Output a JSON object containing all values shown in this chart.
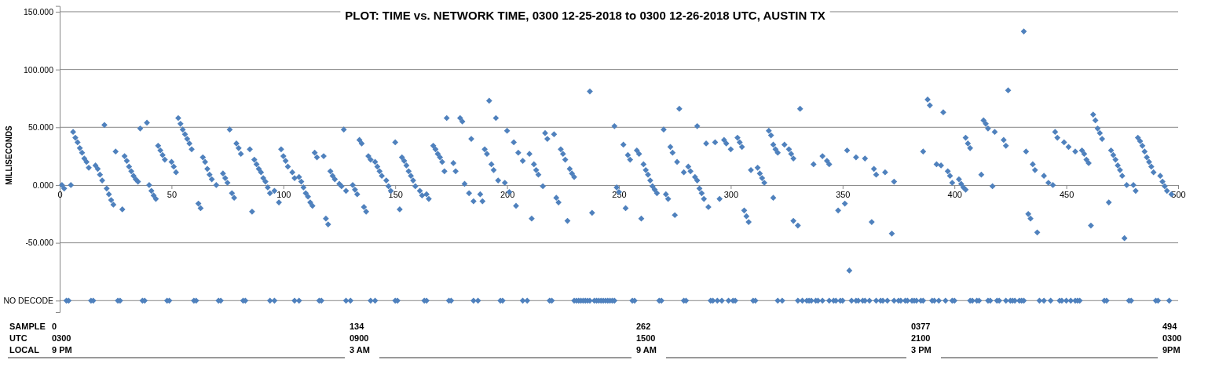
{
  "chart_data": {
    "type": "scatter",
    "title": "PLOT: TIME vs. NETWORK TIME, 0300 12-25-2018 to 0300 12-26-2018  UTC, AUSTIN TX",
    "ylabel": "MILLISECONDS",
    "xlim": [
      0,
      500
    ],
    "xticks": [
      0,
      50,
      100,
      150,
      200,
      250,
      300,
      350,
      400,
      450,
      500
    ],
    "ylim": [
      -110,
      155
    ],
    "yticks": [
      {
        "value": -100,
        "label": "NO DECODE"
      },
      {
        "value": -50,
        "label": "-50.000"
      },
      {
        "value": 0,
        "label": "0.000"
      },
      {
        "value": 50,
        "label": "50.000"
      },
      {
        "value": 100,
        "label": "100.000"
      },
      {
        "value": 150,
        "label": "150.000"
      }
    ],
    "grid": "y",
    "marker": "diamond",
    "series": [
      {
        "color": "#4f81bd",
        "x": [
          1,
          2,
          5,
          6,
          7,
          8,
          9,
          10,
          11,
          12,
          13,
          16,
          17,
          18,
          19,
          20,
          21,
          22,
          23,
          24,
          25,
          28,
          29,
          30,
          31,
          32,
          33,
          34,
          35,
          36,
          39,
          40,
          41,
          42,
          43,
          44,
          45,
          46,
          47,
          50,
          51,
          52,
          53,
          54,
          55,
          56,
          57,
          58,
          59,
          62,
          63,
          64,
          65,
          66,
          67,
          68,
          70,
          73,
          74,
          75,
          76,
          77,
          78,
          79,
          80,
          81,
          85,
          86,
          87,
          88,
          89,
          90,
          91,
          92,
          93,
          94,
          96,
          98,
          99,
          100,
          101,
          102,
          104,
          105,
          107,
          108,
          109,
          110,
          111,
          112,
          113,
          114,
          115,
          118,
          119,
          120,
          121,
          122,
          123,
          125,
          126,
          127,
          128,
          131,
          132,
          133,
          134,
          135,
          136,
          137,
          138,
          139,
          141,
          142,
          143,
          144,
          146,
          147,
          148,
          150,
          152,
          153,
          154,
          155,
          156,
          157,
          158,
          159,
          161,
          162,
          164,
          165,
          167,
          168,
          169,
          170,
          171,
          172,
          173,
          176,
          177,
          179,
          180,
          181,
          183,
          184,
          185,
          188,
          189,
          190,
          191,
          192,
          193,
          194,
          195,
          196,
          199,
          200,
          201,
          203,
          204,
          205,
          207,
          210,
          211,
          212,
          213,
          214,
          216,
          217,
          218,
          221,
          222,
          223,
          224,
          225,
          226,
          227,
          228,
          229,
          230,
          237,
          238,
          248,
          249,
          250,
          252,
          253,
          254,
          255,
          258,
          259,
          260,
          261,
          262,
          263,
          264,
          265,
          266,
          267,
          270,
          271,
          272,
          273,
          274,
          275,
          276,
          277,
          279,
          281,
          282,
          284,
          285,
          285,
          286,
          287,
          288,
          289,
          290,
          293,
          295,
          297,
          298,
          300,
          303,
          304,
          305,
          306,
          307,
          308,
          309,
          312,
          313,
          314,
          315,
          317,
          318,
          319,
          319,
          320,
          321,
          324,
          326,
          327,
          328,
          328,
          330,
          331,
          337,
          341,
          343,
          344,
          348,
          351,
          352,
          353,
          356,
          360,
          363,
          364,
          365,
          369,
          372,
          373,
          386,
          388,
          389,
          392,
          394,
          395,
          397,
          398,
          399,
          402,
          403,
          404,
          405,
          405,
          406,
          407,
          412,
          413,
          414,
          415,
          417,
          418,
          422,
          423,
          424,
          431,
          432,
          433,
          434,
          435,
          436,
          437,
          440,
          442,
          444,
          445,
          446,
          449,
          451,
          454,
          457,
          458,
          459,
          460,
          461,
          462,
          463,
          464,
          465,
          466,
          469,
          470,
          471,
          472,
          473,
          474,
          475,
          476,
          477,
          480,
          481,
          482,
          483,
          484,
          485,
          486,
          487,
          488,
          489,
          492,
          493,
          494,
          495,
          497
        ],
        "values": [
          0,
          -3,
          0,
          46,
          41,
          37,
          32,
          28,
          23,
          20,
          15,
          17,
          14,
          9,
          4,
          52,
          -3,
          -8,
          -13,
          -17,
          29,
          -21,
          25,
          21,
          16,
          12,
          8,
          5,
          3,
          49,
          54,
          0,
          -5,
          -9,
          -12,
          34,
          30,
          26,
          22,
          20,
          16,
          11,
          58,
          53,
          48,
          44,
          40,
          36,
          31,
          -16,
          -20,
          24,
          20,
          14,
          9,
          5,
          0,
          10,
          6,
          2,
          48,
          -7,
          -11,
          36,
          32,
          27,
          31,
          -23,
          22,
          18,
          14,
          11,
          6,
          3,
          -2,
          -7,
          -5,
          -15,
          31,
          25,
          21,
          16,
          11,
          6,
          7,
          3,
          -2,
          -7,
          -10,
          -15,
          -18,
          28,
          24,
          25,
          -29,
          -34,
          12,
          8,
          5,
          1,
          -1,
          48,
          -5,
          0,
          -4,
          -8,
          39,
          36,
          -19,
          -23,
          25,
          22,
          20,
          16,
          12,
          8,
          4,
          -1,
          -5,
          37,
          -21,
          24,
          21,
          17,
          12,
          8,
          4,
          -1,
          -5,
          -9,
          -8,
          -12,
          34,
          31,
          27,
          24,
          20,
          12,
          58,
          19,
          12,
          58,
          55,
          1,
          -7,
          40,
          -14,
          -8,
          -14,
          31,
          27,
          73,
          18,
          13,
          58,
          4,
          2,
          47,
          -6,
          37,
          -18,
          28,
          21,
          27,
          -29,
          18,
          13,
          9,
          -1,
          45,
          40,
          44,
          -11,
          -15,
          31,
          27,
          22,
          -31,
          14,
          10,
          7,
          81,
          -24,
          51,
          -2,
          -6,
          35,
          -20,
          26,
          22,
          30,
          27,
          -29,
          18,
          13,
          9,
          4,
          -1,
          -4,
          -7,
          48,
          -8,
          -12,
          33,
          28,
          -26,
          20,
          66,
          11,
          16,
          12,
          7,
          51,
          4,
          -3,
          -7,
          -12,
          36,
          -19,
          37,
          -12,
          39,
          36,
          31,
          41,
          37,
          33,
          -22,
          -27,
          -32,
          13,
          15,
          10,
          6,
          2,
          47,
          43,
          35,
          -11,
          31,
          28,
          35,
          31,
          27,
          23,
          -31,
          -35,
          66,
          18,
          25,
          21,
          18,
          -22,
          -16,
          30,
          -74,
          24,
          23,
          -32,
          14,
          9,
          11,
          -42,
          3,
          29,
          74,
          69,
          18,
          17,
          63,
          12,
          8,
          2,
          5,
          1,
          -2,
          -4,
          41,
          36,
          32,
          9,
          56,
          53,
          49,
          -1,
          46,
          39,
          34,
          82,
          133,
          29,
          -25,
          -29,
          18,
          13,
          -41,
          8,
          2,
          0,
          46,
          41,
          37,
          33,
          29,
          30,
          27,
          22,
          19,
          -35,
          61,
          56,
          49,
          45,
          40,
          -15,
          30,
          26,
          22,
          17,
          13,
          8,
          -46,
          0,
          0,
          -5,
          41,
          38,
          34,
          29,
          24,
          20,
          16,
          11,
          8,
          3,
          -1,
          -5,
          -8
        ]
      },
      {
        "color": "#4f81bd",
        "x": [
          3,
          4,
          14,
          15,
          26,
          27,
          37,
          38,
          48,
          49,
          60,
          61,
          71,
          72,
          82,
          83,
          94,
          96,
          105,
          107,
          116,
          117,
          128,
          130,
          139,
          141,
          150,
          151,
          163,
          164,
          174,
          175,
          185,
          187,
          197,
          198,
          207,
          209,
          219,
          220,
          230,
          231,
          232,
          233,
          234,
          235,
          236,
          237,
          239,
          240,
          241,
          242,
          243,
          244,
          245,
          246,
          247,
          248,
          256,
          257,
          268,
          269,
          279,
          280,
          291,
          292,
          294,
          296,
          299,
          301,
          302,
          310,
          311,
          321,
          323,
          330,
          332,
          334,
          335,
          336,
          338,
          339,
          341,
          344,
          346,
          347,
          349,
          350,
          354,
          356,
          357,
          359,
          360,
          362,
          365,
          367,
          368,
          370,
          373,
          375,
          376,
          378,
          379,
          381,
          382,
          383,
          385,
          386,
          390,
          391,
          393,
          396,
          399,
          400,
          407,
          408,
          410,
          411,
          415,
          416,
          419,
          420,
          423,
          425,
          426,
          427,
          429,
          430,
          431,
          438,
          440,
          443,
          447,
          448,
          450,
          452,
          454,
          455,
          456,
          467,
          468,
          478,
          479,
          490,
          491,
          496
        ],
        "values": [
          -100,
          -100,
          -100,
          -100,
          -100,
          -100,
          -100,
          -100,
          -100,
          -100,
          -100,
          -100,
          -100,
          -100,
          -100,
          -100,
          -100,
          -100,
          -100,
          -100,
          -100,
          -100,
          -100,
          -100,
          -100,
          -100,
          -100,
          -100,
          -100,
          -100,
          -100,
          -100,
          -100,
          -100,
          -100,
          -100,
          -100,
          -100,
          -100,
          -100,
          -100,
          -100,
          -100,
          -100,
          -100,
          -100,
          -100,
          -100,
          -100,
          -100,
          -100,
          -100,
          -100,
          -100,
          -100,
          -100,
          -100,
          -100,
          -100,
          -100,
          -100,
          -100,
          -100,
          -100,
          -100,
          -100,
          -100,
          -100,
          -100,
          -100,
          -100,
          -100,
          -100,
          -100,
          -100,
          -100,
          -100,
          -100,
          -100,
          -100,
          -100,
          -100,
          -100,
          -100,
          -100,
          -100,
          -100,
          -100,
          -100,
          -100,
          -100,
          -100,
          -100,
          -100,
          -100,
          -100,
          -100,
          -100,
          -100,
          -100,
          -100,
          -100,
          -100,
          -100,
          -100,
          -100,
          -100,
          -100,
          -100,
          -100,
          -100,
          -100,
          -100,
          -100,
          -100,
          -100,
          -100,
          -100,
          -100,
          -100,
          -100,
          -100,
          -100,
          -100,
          -100,
          -100,
          -100,
          -100,
          -100,
          -100,
          -100,
          -100,
          -100,
          -100,
          -100,
          -100,
          -100,
          -100,
          -100,
          -100,
          -100,
          -100,
          -100,
          -100,
          -100,
          -100
        ]
      }
    ],
    "annotations": [
      "SAMPLE\nUTC\nLOCAL",
      "0\n0300\n9 PM",
      "134\n0900\n3 AM",
      "262\n1500\n9 AM",
      "0377\n2100\n3 PM",
      "494\n0300\n9PM"
    ]
  }
}
